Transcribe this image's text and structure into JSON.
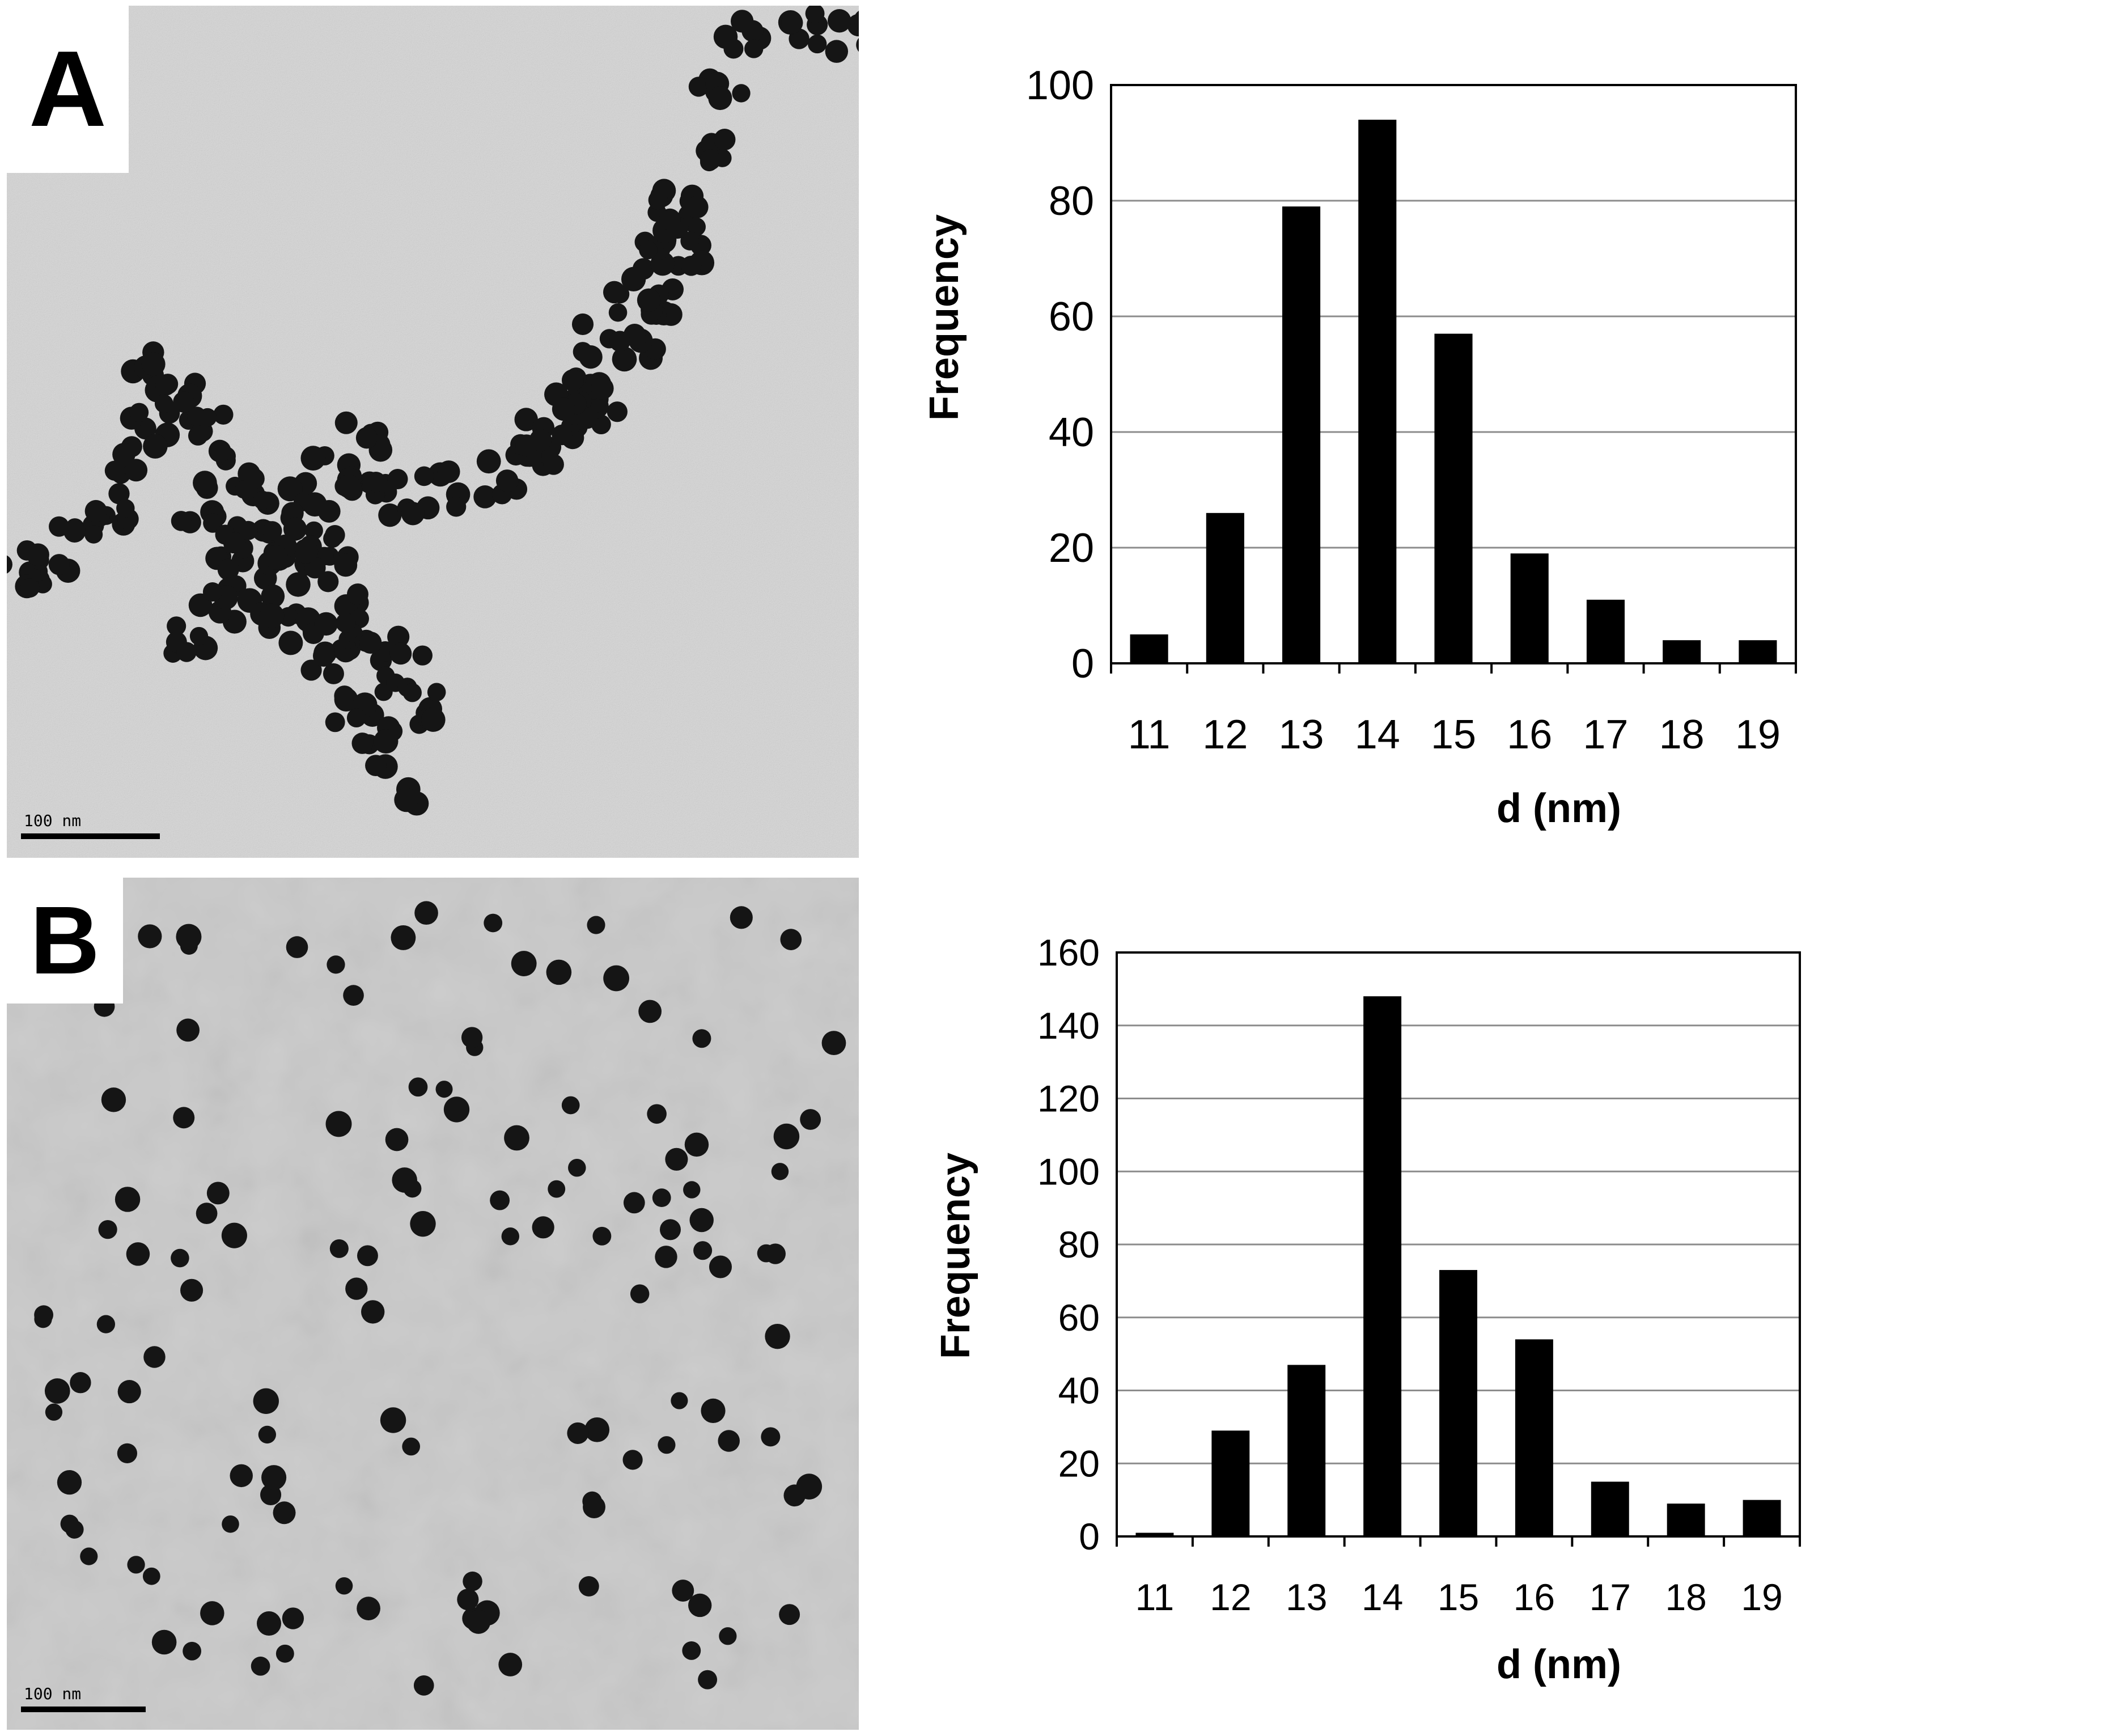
{
  "panels": [
    {
      "letter": "A",
      "scalebar_label": "100 nm"
    },
    {
      "letter": "B",
      "scalebar_label": "100 nm"
    }
  ],
  "colors": {
    "bar": "#000000",
    "grid": "#8c8c8c",
    "image_bg_a": "#d6d6d6",
    "image_bg_b": "#c9c9c9",
    "particle": "#151515"
  },
  "chart_data": [
    {
      "type": "bar",
      "categories": [
        "11",
        "12",
        "13",
        "14",
        "15",
        "16",
        "17",
        "18",
        "19"
      ],
      "values": [
        5,
        26,
        79,
        94,
        57,
        19,
        11,
        4,
        4
      ],
      "xlabel": "d (nm)",
      "ylabel": "Frequency",
      "ylim": [
        0,
        100
      ],
      "yticks": [
        "0",
        "20",
        "40",
        "60",
        "80",
        "100"
      ],
      "grid": true,
      "legend": "none"
    },
    {
      "type": "bar",
      "categories": [
        "11",
        "12",
        "13",
        "14",
        "15",
        "16",
        "17",
        "18",
        "19"
      ],
      "values": [
        1,
        29,
        47,
        148,
        73,
        54,
        15,
        9,
        10
      ],
      "xlabel": "d (nm)",
      "ylabel": "Frequency",
      "ylim": [
        0,
        160
      ],
      "yticks": [
        "0",
        "20",
        "40",
        "60",
        "80",
        "100",
        "120",
        "140",
        "160"
      ],
      "grid": true,
      "legend": "none"
    }
  ]
}
